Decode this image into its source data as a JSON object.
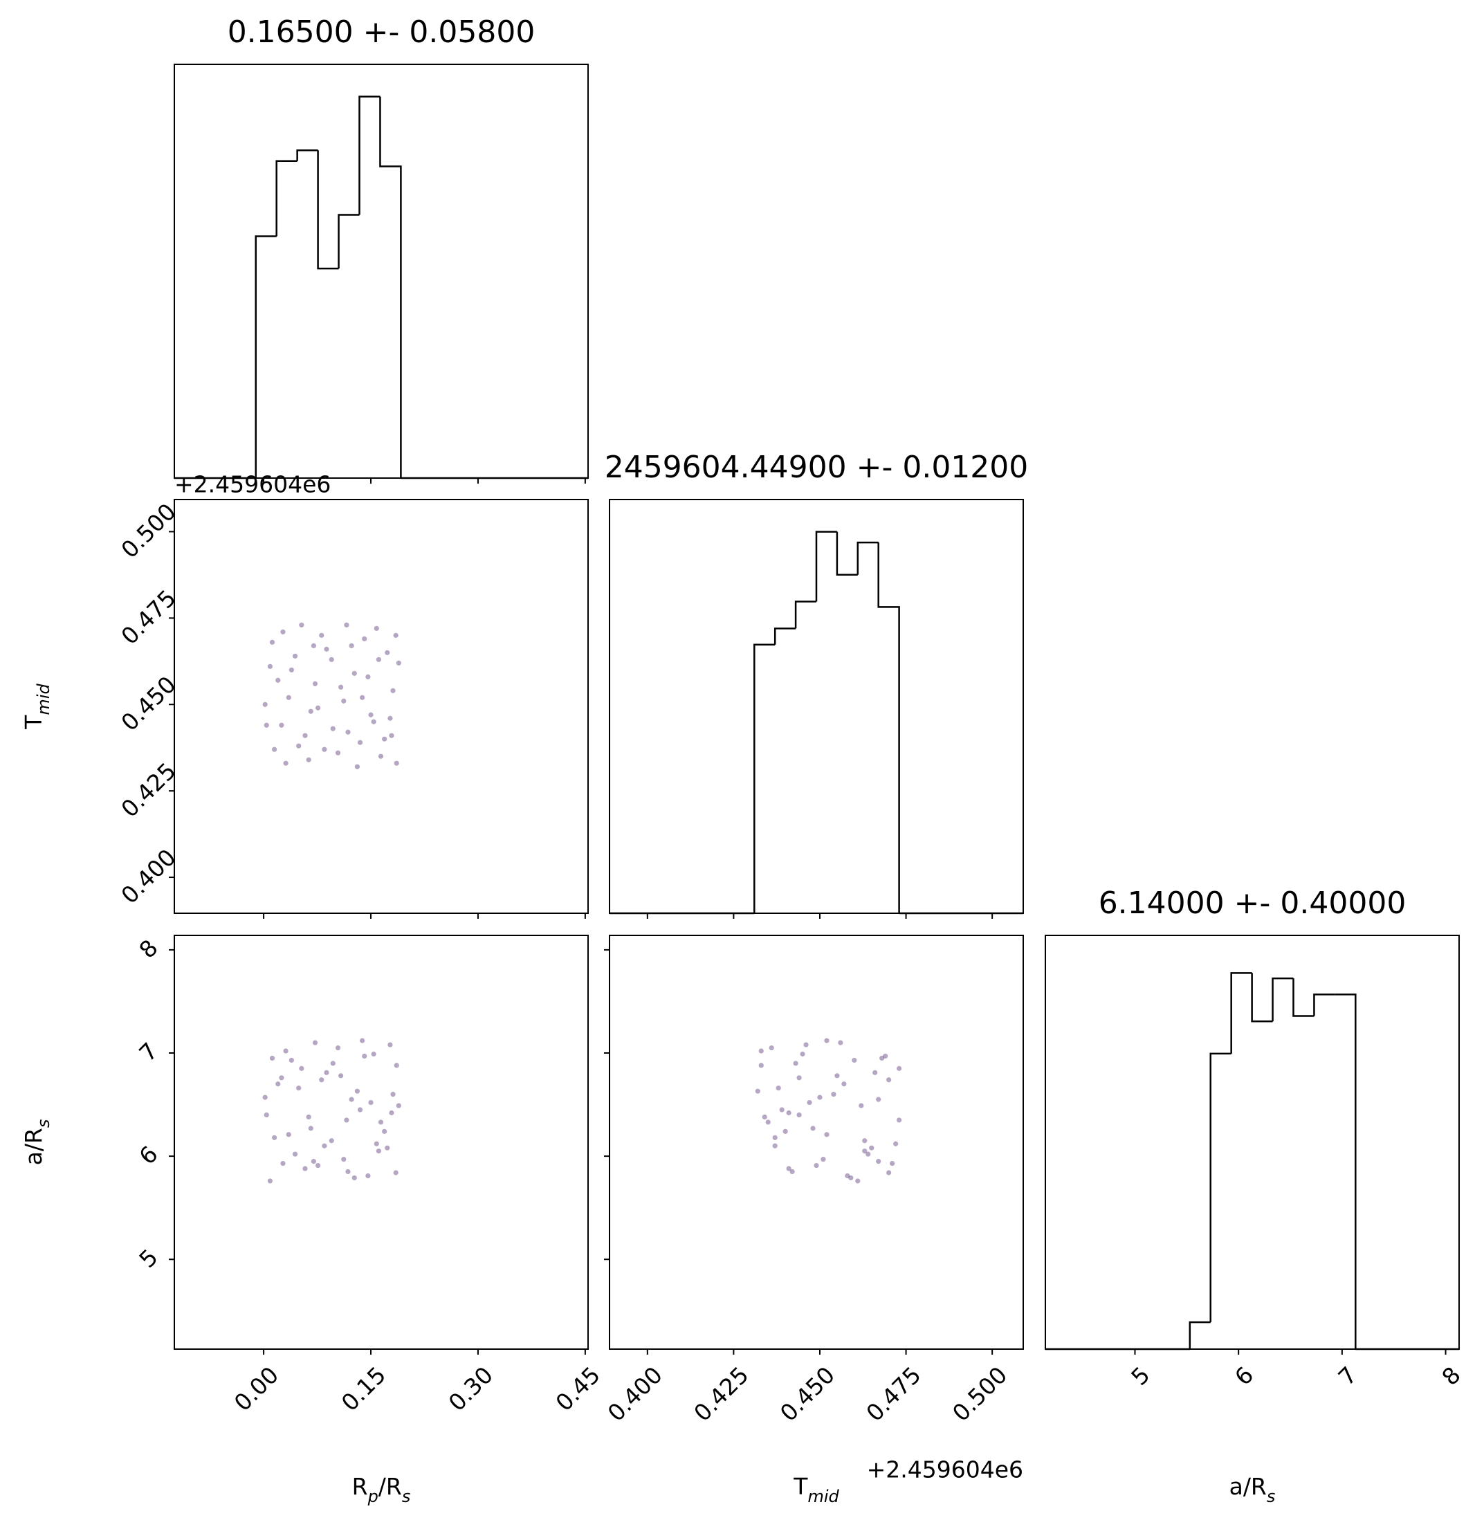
{
  "chart_data": [
    {
      "type": "hist",
      "title": "0.16500 +- 0.05800",
      "bins": [
        -0.011,
        0.018,
        0.047,
        0.076,
        0.105,
        0.134,
        0.163,
        0.192
      ],
      "counts": [
        45,
        59,
        61,
        39,
        49,
        71,
        58
      ],
      "xlim": [
        -0.125,
        0.454
      ],
      "ylim": [
        0,
        77
      ],
      "xticks": [
        0,
        0.15,
        0.3,
        0.45
      ],
      "color": "#000000"
    },
    {
      "type": "scatter",
      "offset_label": "+2.459604e6",
      "ylabel": [
        "T",
        "mid"
      ],
      "x": [
        0.012,
        0.035,
        0.058,
        0.081,
        0.104,
        0.127,
        0.15,
        0.173,
        0.186,
        0.004,
        0.027,
        0.049,
        0.072,
        0.095,
        0.118,
        0.141,
        0.164,
        0.181,
        0.009,
        0.031,
        0.066,
        0.088,
        0.112,
        0.135,
        0.158,
        0.177,
        0.02,
        0.044,
        0.063,
        0.097,
        0.123,
        0.146,
        0.169,
        0.189,
        0.015,
        0.053,
        0.076,
        0.108,
        0.131,
        0.154,
        0.185,
        0.002,
        0.039,
        0.085,
        0.116,
        0.138,
        0.161,
        0.179,
        0.025,
        0.07
      ],
      "y": [
        0.468,
        0.452,
        0.441,
        0.47,
        0.436,
        0.459,
        0.447,
        0.465,
        0.433,
        0.444,
        0.471,
        0.438,
        0.456,
        0.463,
        0.442,
        0.469,
        0.435,
        0.454,
        0.461,
        0.433,
        0.448,
        0.466,
        0.451,
        0.439,
        0.472,
        0.446,
        0.457,
        0.464,
        0.434,
        0.443,
        0.467,
        0.458,
        0.44,
        0.462,
        0.437,
        0.473,
        0.449,
        0.455,
        0.432,
        0.445,
        0.47,
        0.45,
        0.46,
        0.437,
        0.473,
        0.452,
        0.463,
        0.441,
        0.444,
        0.467
      ],
      "xlim": [
        -0.125,
        0.454
      ],
      "ylim": [
        0.3896,
        0.5093
      ],
      "xticks": [
        0,
        0.15,
        0.3,
        0.45
      ],
      "yticks": [
        {
          "value": 0.4,
          "label": "0.400"
        },
        0.425,
        {
          "value": 0.45,
          "label": "0.450"
        },
        0.475,
        {
          "value": 0.5,
          "label": "0.500"
        }
      ],
      "color": "#5b3b7b"
    },
    {
      "type": "hist",
      "title": "2459604.44900 +- 0.01200",
      "bins": [
        0.431,
        0.437,
        0.443,
        0.449,
        0.455,
        0.461,
        0.467,
        0.473
      ],
      "counts": [
        50,
        53,
        58,
        71,
        63,
        69,
        57
      ],
      "xlim": [
        0.389,
        0.509
      ],
      "ylim": [
        0,
        77
      ],
      "xticks": [
        0.4,
        0.425,
        0.45,
        0.475,
        0.5
      ],
      "color": "#000000"
    },
    {
      "type": "scatter",
      "xlabel": [
        "R",
        "p",
        "/R",
        "s"
      ],
      "ylabel": [
        "a/R",
        "s"
      ],
      "x": [
        0.012,
        0.035,
        0.058,
        0.081,
        0.104,
        0.127,
        0.15,
        0.173,
        0.186,
        0.004,
        0.027,
        0.049,
        0.072,
        0.095,
        0.118,
        0.141,
        0.164,
        0.181,
        0.009,
        0.031,
        0.066,
        0.088,
        0.112,
        0.135,
        0.158,
        0.177,
        0.02,
        0.044,
        0.063,
        0.097,
        0.123,
        0.146,
        0.169,
        0.189,
        0.015,
        0.053,
        0.076,
        0.108,
        0.131,
        0.154,
        0.185,
        0.002,
        0.039,
        0.085,
        0.116,
        0.138,
        0.161,
        0.179,
        0.025,
        0.07
      ],
      "y": [
        6.95,
        6.21,
        5.88,
        6.74,
        7.05,
        5.79,
        6.52,
        6.08,
        6.88,
        6.4,
        5.93,
        6.66,
        7.1,
        6.15,
        5.85,
        6.97,
        6.33,
        6.6,
        5.76,
        7.02,
        6.27,
        6.81,
        5.97,
        6.45,
        6.12,
        7.08,
        6.7,
        6.02,
        6.38,
        6.9,
        6.55,
        5.81,
        6.24,
        6.49,
        6.18,
        6.85,
        5.91,
        6.78,
        6.63,
        6.99,
        5.84,
        6.57,
        6.93,
        6.1,
        6.35,
        7.12,
        6.05,
        6.42,
        6.76,
        5.95
      ],
      "xlim": [
        -0.125,
        0.454
      ],
      "ylim": [
        4.13,
        8.14
      ],
      "xticks": [
        {
          "value": 0,
          "label": "0.00"
        },
        0.15,
        {
          "value": 0.3,
          "label": "0.30"
        },
        0.45
      ],
      "yticks": [
        5,
        6,
        7,
        8
      ],
      "color": "#5b3b7b"
    },
    {
      "type": "scatter",
      "xlabel": [
        "T",
        "mid"
      ],
      "offset_label": "+2.459604e6",
      "x": [
        0.468,
        0.452,
        0.441,
        0.47,
        0.436,
        0.459,
        0.447,
        0.465,
        0.433,
        0.444,
        0.471,
        0.438,
        0.456,
        0.463,
        0.442,
        0.469,
        0.435,
        0.454,
        0.461,
        0.433,
        0.448,
        0.466,
        0.451,
        0.439,
        0.472,
        0.446,
        0.457,
        0.464,
        0.434,
        0.443,
        0.467,
        0.458,
        0.44,
        0.462,
        0.437,
        0.473,
        0.449,
        0.455,
        0.432,
        0.445,
        0.47,
        0.45,
        0.46,
        0.437,
        0.473,
        0.452,
        0.463,
        0.441,
        0.444,
        0.467
      ],
      "y": [
        6.95,
        6.21,
        5.88,
        6.74,
        7.05,
        5.79,
        6.52,
        6.08,
        6.88,
        6.4,
        5.93,
        6.66,
        7.1,
        6.15,
        5.85,
        6.97,
        6.33,
        6.6,
        5.76,
        7.02,
        6.27,
        6.81,
        5.97,
        6.45,
        6.12,
        7.08,
        6.7,
        6.02,
        6.38,
        6.9,
        6.55,
        5.81,
        6.24,
        6.49,
        6.18,
        6.85,
        5.91,
        6.78,
        6.63,
        6.99,
        5.84,
        6.57,
        6.93,
        6.1,
        6.35,
        7.12,
        6.05,
        6.42,
        6.76,
        5.95
      ],
      "xlim": [
        0.389,
        0.509
      ],
      "ylim": [
        4.13,
        8.14
      ],
      "xticks": [
        {
          "value": 0.4,
          "label": "0.400"
        },
        0.425,
        {
          "value": 0.45,
          "label": "0.450"
        },
        0.475,
        {
          "value": 0.5,
          "label": "0.500"
        }
      ],
      "yticks": [
        5,
        6,
        7,
        8
      ],
      "color": "#5b3b7b"
    },
    {
      "type": "hist",
      "title": "6.14000 +- 0.40000",
      "xlabel": [
        "a/R",
        "s"
      ],
      "bins": [
        5.53,
        5.73,
        5.93,
        6.13,
        6.33,
        6.53,
        6.73,
        6.93,
        7.13
      ],
      "counts": [
        5,
        55,
        70,
        61,
        69,
        62,
        66,
        66
      ],
      "xlim": [
        4.135,
        8.13
      ],
      "ylim": [
        0,
        77
      ],
      "xticks": [
        5,
        6,
        7,
        8
      ],
      "color": "#000000"
    }
  ]
}
